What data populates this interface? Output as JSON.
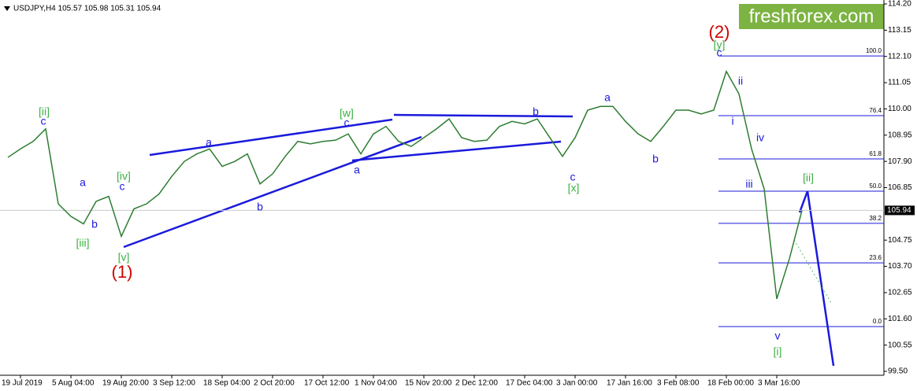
{
  "chart_data": {
    "type": "line",
    "title": "USDJPY,H4  105.57 105.98 105.31 105.94",
    "watermark": "freshforex.com",
    "categories": [
      null,
      "19 Jul 2019",
      null,
      null,
      null,
      "5 Aug 04:00",
      null,
      null,
      null,
      "19 Aug 20:00",
      null,
      null,
      null,
      "3 Sep 12:00",
      null,
      null,
      null,
      "18 Sep 04:00",
      null,
      null,
      null,
      "2 Oct 20:00",
      null,
      null,
      null,
      "17 Oct 12:00",
      null,
      null,
      null,
      "1 Nov 04:00",
      null,
      null,
      null,
      "15 Nov 20:00",
      null,
      null,
      null,
      "2 Dec 12:00",
      null,
      null,
      null,
      "17 Dec 04:00",
      null,
      null,
      null,
      "3 Jan 00:00",
      null,
      null,
      null,
      "17 Jan 16:00",
      null,
      null,
      null,
      "3 Feb 08:00",
      null,
      null,
      null,
      "18 Feb 00:00",
      null,
      null,
      null,
      "3 Mar 16:00",
      null,
      null,
      null,
      null,
      null,
      null,
      null,
      null
    ],
    "series": [
      {
        "color": "#2e7d32",
        "values": [
          108.06,
          108.4,
          108.7,
          109.2,
          106.2,
          105.7,
          105.4,
          106.3,
          106.5,
          104.9,
          106.0,
          106.2,
          106.6,
          107.3,
          107.9,
          108.2,
          108.4,
          107.7,
          107.9,
          108.2,
          107.0,
          107.4,
          108.1,
          108.7,
          108.6,
          108.7,
          108.75,
          109.0,
          108.2,
          109.0,
          109.3,
          108.7,
          108.5,
          108.85,
          109.2,
          109.6,
          108.85,
          108.7,
          108.75,
          109.3,
          109.5,
          109.4,
          109.6,
          108.85,
          108.1,
          108.85,
          109.95,
          110.1,
          110.1,
          109.5,
          109.0,
          108.7,
          109.3,
          109.95,
          109.95,
          109.8,
          109.95,
          111.5,
          110.6,
          108.4,
          106.8,
          102.4,
          104.0,
          105.94,
          null,
          null,
          null,
          null,
          null,
          null
        ]
      }
    ],
    "ylim": [
      99.5,
      114.2
    ],
    "yticks": [
      {
        "value": 99.5,
        "label": "99.50"
      },
      {
        "value": 100.55,
        "label": "100.55"
      },
      {
        "value": 101.6,
        "label": "101.60"
      },
      {
        "value": 102.65,
        "label": "102.65"
      },
      {
        "value": 103.7,
        "label": "103.70"
      },
      {
        "value": 104.75,
        "label": "104.75"
      },
      {
        "value": 106.85,
        "label": "106.85"
      },
      {
        "value": 107.9,
        "label": "107.90"
      },
      {
        "value": 108.95,
        "label": "108.95"
      },
      {
        "value": 110,
        "label": "110.00"
      },
      {
        "value": 111.05,
        "label": "111.05"
      },
      {
        "value": 112.1,
        "label": "112.10"
      },
      {
        "value": 113.15,
        "label": "113.15"
      },
      {
        "value": 114.2,
        "label": "114.20"
      }
    ],
    "current_price": 105.94,
    "fib_levels": [
      {
        "ratio": {
          "value": 100,
          "label": "100.0"
        },
        "price": 112.12
      },
      {
        "ratio": 76.4,
        "price": 109.73
      },
      {
        "ratio": 61.8,
        "price": 108.0
      },
      {
        "ratio": {
          "value": 50,
          "label": "50.0"
        },
        "price": 106.71
      },
      {
        "ratio": 38.2,
        "price": 105.42
      },
      {
        "ratio": 23.6,
        "price": 103.84
      },
      {
        "ratio": {
          "value": 0,
          "label": "0.0"
        },
        "price": 101.29
      }
    ],
    "annotations": [
      "[ii]",
      "c",
      "a",
      "b",
      "[iii]",
      "[iv]",
      "c",
      "[v]",
      "(1)",
      "a",
      "b",
      "[w]",
      "c",
      "a",
      "b",
      "c",
      "[x]",
      "a",
      "b",
      "(2)",
      "[y]",
      "c",
      "ii",
      "i",
      "iv",
      "iii",
      "[ii]",
      "v",
      "[i]"
    ]
  }
}
